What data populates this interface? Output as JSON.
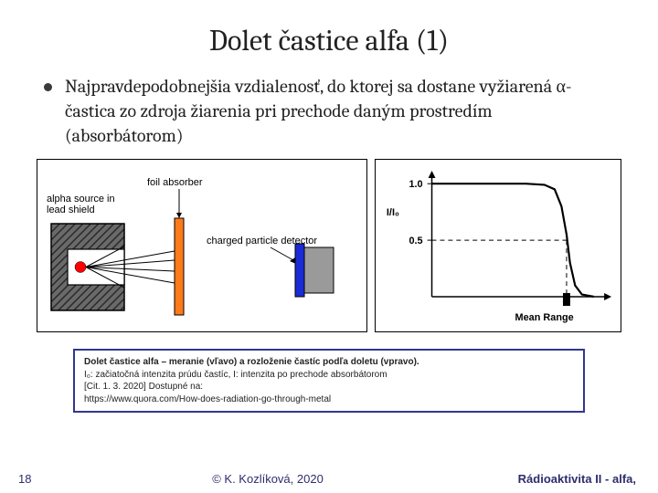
{
  "title": "Dolet častice alfa (1)",
  "bullet": "Najpravdepodobnejšia vzdialenosť, do ktorej sa dostane vyžiarená α-častica zo zdroja žiarenia pri prechode daným prostredím (absorbátorom)",
  "left_diagram": {
    "label_source": "alpha source in",
    "label_source2": "lead shield",
    "label_absorber": "foil absorber",
    "label_detector": "charged particle detector",
    "shield_color": "#6a6a6a",
    "shield_stripe": "#2b2b2b",
    "particle_color": "#ff0000",
    "particle_radius": 6,
    "ray_color": "#000000",
    "foil_color": "#ff7a1a",
    "detector_front": "#1a2bd6",
    "detector_body": "#9a9a9a"
  },
  "right_chart": {
    "type": "line",
    "xlabel": "Mean  Range",
    "ylabel": "I/I₀",
    "y_ticks": [
      {
        "v": 1.0,
        "label": "1.0"
      },
      {
        "v": 0.5,
        "label": "0.5"
      }
    ],
    "ylim": [
      0,
      1.05
    ],
    "xlim": [
      0,
      100
    ],
    "curve": [
      {
        "x": 0,
        "y": 1.0
      },
      {
        "x": 55,
        "y": 1.0
      },
      {
        "x": 66,
        "y": 0.99
      },
      {
        "x": 72,
        "y": 0.95
      },
      {
        "x": 76,
        "y": 0.8
      },
      {
        "x": 79,
        "y": 0.55
      },
      {
        "x": 81,
        "y": 0.3
      },
      {
        "x": 84,
        "y": 0.1
      },
      {
        "x": 88,
        "y": 0.02
      },
      {
        "x": 95,
        "y": 0.0
      }
    ],
    "mean_range_x": 79,
    "line_color": "#000000",
    "line_width": 2.2,
    "dash_color": "#000000",
    "range_bar_color": "#000000"
  },
  "caption": {
    "title": "Dolet častice alfa – meranie (vľavo) a rozloženie častíc podľa doletu (vpravo).",
    "line2": "I₀: začiatočná intenzita prúdu častíc, I: intenzita po prechode absorbátorom",
    "line3": "[Cit. 1. 3. 2020] Dostupné na:",
    "line4": "https://www.quora.com/How-does-radiation-go-through-metal"
  },
  "footer": {
    "page": "18",
    "center": "© K. Kozlíková, 2020",
    "right": "Rádioaktivita II - alfa,"
  }
}
